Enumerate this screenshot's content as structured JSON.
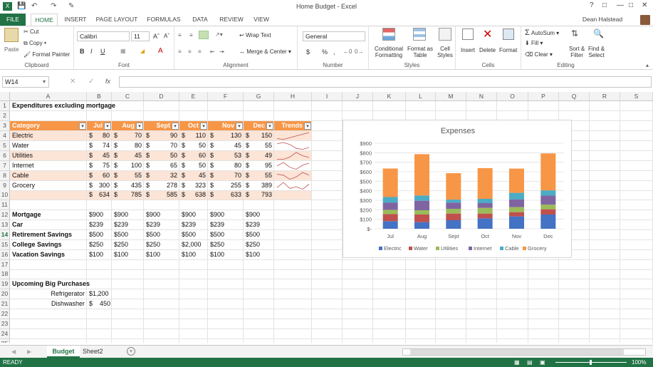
{
  "title": "Home Budget - Excel",
  "user": "Dean Halstead",
  "tabs": [
    "FILE",
    "HOME",
    "INSERT",
    "PAGE LAYOUT",
    "FORMULAS",
    "DATA",
    "REVIEW",
    "VIEW"
  ],
  "ribbon": {
    "clipboard": {
      "paste": "Paste",
      "cut": "Cut",
      "copy": "Copy",
      "format_painter": "Format Painter",
      "label": "Clipboard"
    },
    "font": {
      "name": "Calibri",
      "size": "11",
      "label": "Font"
    },
    "alignment": {
      "wrap": "Wrap Text",
      "merge": "Merge & Center",
      "label": "Alignment"
    },
    "number": {
      "format": "General",
      "dollar": "$",
      "percent": "%",
      "comma": ",",
      "label": "Number"
    },
    "styles": {
      "cond": "Conditional",
      "cond2": "Formatting",
      "fmt": "Format as",
      "fmt2": "Table",
      "cell": "Cell",
      "cell2": "Styles",
      "label": "Styles"
    },
    "cells": {
      "insert": "Insert",
      "delete": "Delete",
      "format": "Format",
      "label": "Cells"
    },
    "editing": {
      "autosum": "AutoSum",
      "fill": "Fill",
      "clear": "Clear",
      "sort": "Sort &",
      "sort2": "Filter",
      "find": "Find &",
      "find2": "Select",
      "label": "Editing"
    }
  },
  "namebox": "W14",
  "fx": "fx",
  "columns": [
    "A",
    "B",
    "C",
    "D",
    "E",
    "F",
    "G",
    "H",
    "I",
    "J",
    "K",
    "L",
    "M",
    "N",
    "O",
    "P",
    "Q",
    "R",
    "S"
  ],
  "rows": [
    "1",
    "2",
    "3",
    "4",
    "5",
    "6",
    "7",
    "8",
    "9",
    "10",
    "11",
    "12",
    "13",
    "14",
    "15",
    "16",
    "17",
    "18",
    "19",
    "20",
    "21",
    "22",
    "23",
    "24",
    "25"
  ],
  "sheet": {
    "a1": "Expenditures excluding mortgage",
    "headers": [
      "Category",
      "Jul",
      "Aug",
      "Sept",
      "Oct",
      "Nov",
      "Dec",
      "Trends"
    ],
    "table": [
      {
        "cat": "Electric",
        "v": [
          "80",
          "70",
          "90",
          "110",
          "130",
          "150"
        ]
      },
      {
        "cat": "Water",
        "v": [
          "74",
          "80",
          "70",
          "50",
          "45",
          "55"
        ]
      },
      {
        "cat": "Utilities",
        "v": [
          "45",
          "45",
          "50",
          "60",
          "53",
          "49"
        ]
      },
      {
        "cat": "Internet",
        "v": [
          "75",
          "100",
          "65",
          "50",
          "80",
          "95"
        ]
      },
      {
        "cat": "Cable",
        "v": [
          "60",
          "55",
          "32",
          "45",
          "70",
          "55"
        ]
      },
      {
        "cat": "Grocery",
        "v": [
          "300",
          "435",
          "278",
          "323",
          "255",
          "389"
        ]
      },
      {
        "cat": "",
        "v": [
          "634",
          "785",
          "585",
          "638",
          "633",
          "793"
        ]
      }
    ],
    "fixed": [
      {
        "cat": "Mortgage",
        "v": [
          "$900",
          "$900",
          "$900",
          "$900",
          "$900",
          "$900"
        ]
      },
      {
        "cat": "Car",
        "v": [
          "$239",
          "$239",
          "$239",
          "$239",
          "$239",
          "$239"
        ]
      },
      {
        "cat": "Retirement Savings",
        "v": [
          "$500",
          "$500",
          "$500",
          "$500",
          "$500",
          "$500"
        ]
      },
      {
        "cat": "College Savings",
        "v": [
          "$250",
          "$250",
          "$250",
          "$2,000",
          "$250",
          "$250"
        ]
      },
      {
        "cat": "Vacation Savings",
        "v": [
          "$100",
          "$100",
          "$100",
          "$100",
          "$100",
          "$100"
        ]
      }
    ],
    "purchases_title": "Upcoming Big Purchases",
    "purchases": [
      {
        "item": "Refrigerator",
        "v": "$1,200"
      },
      {
        "item": "Dishwasher",
        "v": "$    450"
      }
    ],
    "dollar": "$"
  },
  "chart_data": {
    "type": "bar",
    "stacked": true,
    "title": "Expenses",
    "categories": [
      "Jul",
      "Aug",
      "Sept",
      "Oct",
      "Nov",
      "Dec"
    ],
    "yticks": [
      "$900",
      "$800",
      "$700",
      "$600",
      "$500",
      "$400",
      "$300",
      "$200",
      "$100",
      "$-"
    ],
    "ylim": [
      0,
      900
    ],
    "series": [
      {
        "name": "Electric",
        "color": "#4472c4",
        "values": [
          80,
          70,
          90,
          110,
          130,
          150
        ]
      },
      {
        "name": "Water",
        "color": "#c0504d",
        "values": [
          74,
          80,
          70,
          50,
          45,
          55
        ]
      },
      {
        "name": "Utilities",
        "color": "#9bbb59",
        "values": [
          45,
          45,
          50,
          60,
          53,
          49
        ]
      },
      {
        "name": "Internet",
        "color": "#8064a2",
        "values": [
          75,
          100,
          65,
          50,
          80,
          95
        ]
      },
      {
        "name": "Cable",
        "color": "#4bacc6",
        "values": [
          60,
          55,
          32,
          45,
          70,
          55
        ]
      },
      {
        "name": "Grocery",
        "color": "#f79646",
        "values": [
          300,
          435,
          278,
          323,
          255,
          389
        ]
      }
    ],
    "legend": "bottom",
    "grid": true
  },
  "sheet_tabs": [
    "Budget",
    "Sheet2"
  ],
  "status": {
    "left": "READY",
    "zoom": "100%"
  }
}
